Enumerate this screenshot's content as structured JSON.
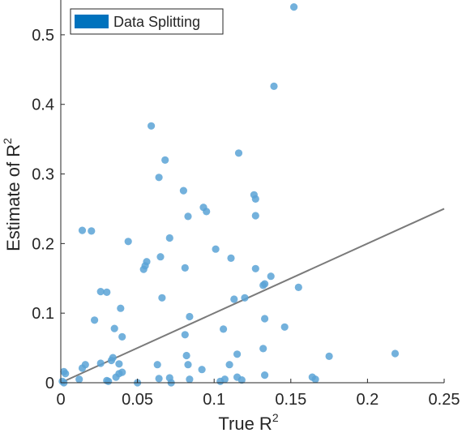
{
  "chart_data": {
    "type": "scatter",
    "title": "",
    "xlabel": "True R",
    "xlabel_sup": "2",
    "ylabel": "Estimate of R",
    "ylabel_sup": "2",
    "xlim": [
      0,
      0.25
    ],
    "ylim": [
      0,
      0.55
    ],
    "xticks": [
      0,
      0.05,
      0.1,
      0.15,
      0.2,
      0.25
    ],
    "xtick_labels": [
      "0",
      "0.05",
      "0.1",
      "0.15",
      "0.2",
      "0.25"
    ],
    "yticks": [
      0,
      0.1,
      0.2,
      0.3,
      0.4,
      0.5
    ],
    "ytick_labels": [
      "0",
      "0.1",
      "0.2",
      "0.3",
      "0.4",
      "0.5"
    ],
    "grid": false,
    "legend": {
      "placement": "top-left",
      "entries": [
        "Data Splitting"
      ]
    },
    "series": [
      {
        "name": "Data Splitting",
        "color": "#5ba3d6",
        "legend_color": "#0072bd",
        "points": [
          [
            0.152,
            0.54
          ],
          [
            0.139,
            0.426
          ],
          [
            0.059,
            0.369
          ],
          [
            0.116,
            0.33
          ],
          [
            0.068,
            0.32
          ],
          [
            0.064,
            0.295
          ],
          [
            0.08,
            0.276
          ],
          [
            0.126,
            0.27
          ],
          [
            0.127,
            0.264
          ],
          [
            0.093,
            0.252
          ],
          [
            0.095,
            0.246
          ],
          [
            0.083,
            0.239
          ],
          [
            0.127,
            0.24
          ],
          [
            0.014,
            0.219
          ],
          [
            0.02,
            0.218
          ],
          [
            0.071,
            0.208
          ],
          [
            0.044,
            0.203
          ],
          [
            0.101,
            0.192
          ],
          [
            0.111,
            0.179
          ],
          [
            0.065,
            0.181
          ],
          [
            0.056,
            0.174
          ],
          [
            0.055,
            0.168
          ],
          [
            0.054,
            0.163
          ],
          [
            0.081,
            0.165
          ],
          [
            0.127,
            0.164
          ],
          [
            0.137,
            0.153
          ],
          [
            0.155,
            0.137
          ],
          [
            0.133,
            0.142
          ],
          [
            0.132,
            0.14
          ],
          [
            0.026,
            0.131
          ],
          [
            0.03,
            0.13
          ],
          [
            0.066,
            0.122
          ],
          [
            0.113,
            0.12
          ],
          [
            0.12,
            0.122
          ],
          [
            0.039,
            0.107
          ],
          [
            0.084,
            0.095
          ],
          [
            0.133,
            0.092
          ],
          [
            0.022,
            0.09
          ],
          [
            0.146,
            0.08
          ],
          [
            0.035,
            0.078
          ],
          [
            0.106,
            0.077
          ],
          [
            0.081,
            0.069
          ],
          [
            0.04,
            0.066
          ],
          [
            0.115,
            0.041
          ],
          [
            0.082,
            0.039
          ],
          [
            0.175,
            0.038
          ],
          [
            0.218,
            0.042
          ],
          [
            0.034,
            0.036
          ],
          [
            0.132,
            0.049
          ],
          [
            0.092,
            0.019
          ],
          [
            0.038,
            0.027
          ],
          [
            0.063,
            0.026
          ],
          [
            0.083,
            0.026
          ],
          [
            0.11,
            0.026
          ],
          [
            0.026,
            0.028
          ],
          [
            0.033,
            0.032
          ],
          [
            0.016,
            0.026
          ],
          [
            0.014,
            0.021
          ],
          [
            0.04,
            0.015
          ],
          [
            0.038,
            0.013
          ],
          [
            0.002,
            0.016
          ],
          [
            0.003,
            0.013
          ],
          [
            0.036,
            0.008
          ],
          [
            0.012,
            0.005
          ],
          [
            0.03,
            0.003
          ],
          [
            0.031,
            0.002
          ],
          [
            0.05,
            0.0
          ],
          [
            0.064,
            0.006
          ],
          [
            0.071,
            0.007
          ],
          [
            0.084,
            0.005
          ],
          [
            0.104,
            0.002
          ],
          [
            0.107,
            0.005
          ],
          [
            0.115,
            0.008
          ],
          [
            0.118,
            0.004
          ],
          [
            0.133,
            0.011
          ],
          [
            0.164,
            0.008
          ],
          [
            0.166,
            0.005
          ],
          [
            0.002,
            0.0
          ],
          [
            0.001,
            0.002
          ],
          [
            0.072,
            0.0
          ]
        ]
      }
    ],
    "reference_line": {
      "from": [
        0,
        0
      ],
      "to": [
        0.25,
        0.25
      ],
      "color": "#7a7a7a"
    }
  }
}
